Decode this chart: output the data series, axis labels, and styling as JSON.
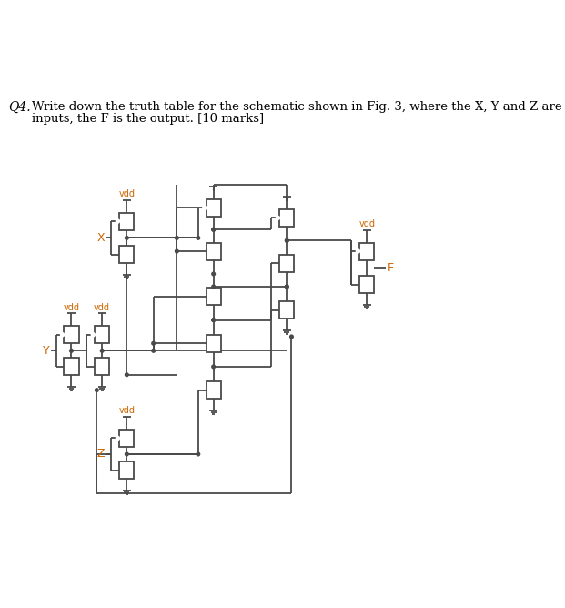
{
  "bg_color": "#ffffff",
  "lc": "#4a4a4a",
  "lw": 1.3,
  "fig_width": 6.21,
  "fig_height": 6.68,
  "dpi": 100,
  "text_q4": "Q4.",
  "text_line1": "Write down the truth table for the schematic shown in Fig. 3, where the X, Y and Z are the",
  "text_line2": "inputs, the F is the output. [10 marks]",
  "label_vdd": "vdd",
  "label_x": "X",
  "label_y": "Y",
  "label_z": "Z",
  "label_f": "F"
}
